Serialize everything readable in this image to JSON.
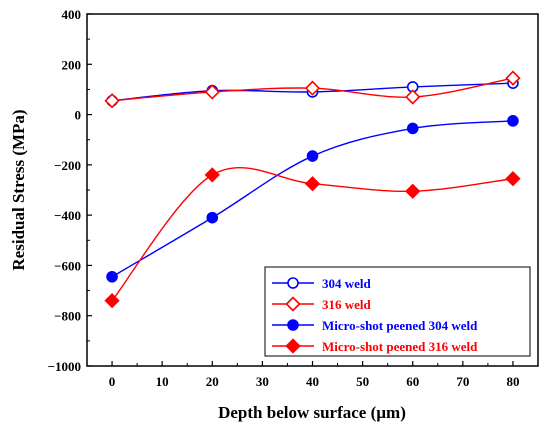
{
  "chart_data": {
    "type": "line",
    "title": "",
    "xlabel": "Depth below surface (µm)",
    "ylabel": "Residual Stress (MPa)",
    "xlim": [
      -5,
      85
    ],
    "ylim": [
      -1000,
      400
    ],
    "xticks": [
      "0",
      "10",
      "20",
      "30",
      "40",
      "50",
      "60",
      "70",
      "80"
    ],
    "yticks": [
      "400",
      "200",
      "0",
      "−200",
      "−400",
      "−600",
      "−800",
      "−1000"
    ],
    "legend_position": "bottom-right",
    "grid": false,
    "x": [
      0,
      20,
      40,
      60,
      80
    ],
    "series": [
      {
        "name": "304 weld",
        "values": [
          55,
          95,
          90,
          110,
          125
        ],
        "color": "#0000ff",
        "marker": "circle",
        "filled": false
      },
      {
        "name": "316 weld",
        "values": [
          55,
          90,
          105,
          70,
          145
        ],
        "color": "#ff0000",
        "marker": "diamond",
        "filled": false
      },
      {
        "name": "Micro-shot peened 304 weld",
        "values": [
          -645,
          -410,
          -165,
          -55,
          -25
        ],
        "color": "#0000ff",
        "marker": "circle",
        "filled": true
      },
      {
        "name": "Micro-shot peened 316 weld",
        "values": [
          -740,
          -240,
          -275,
          -305,
          -255
        ],
        "color": "#ff0000",
        "marker": "diamond",
        "filled": true
      }
    ]
  }
}
